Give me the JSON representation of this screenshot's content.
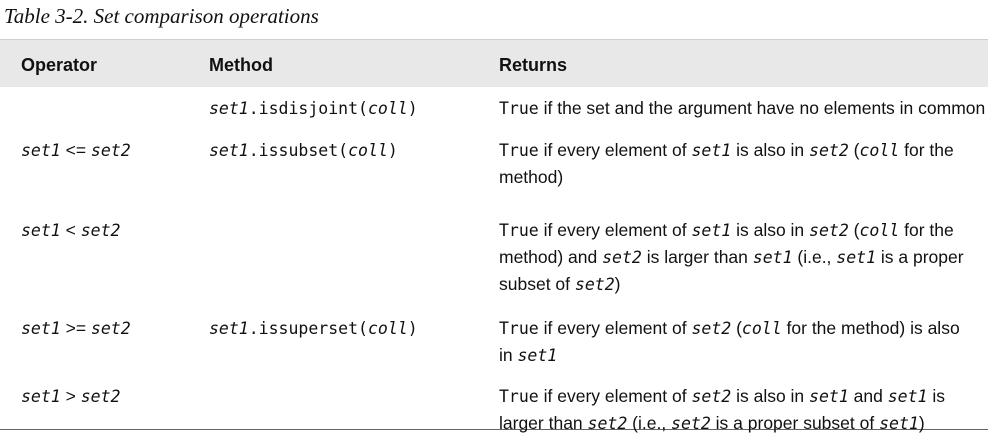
{
  "caption": "Table 3-2. Set comparison operations",
  "headers": [
    "Operator",
    "Method",
    "Returns"
  ],
  "rows": [
    {
      "operator": "",
      "method_obj": "set1",
      "method_name": ".isdisjoint(",
      "method_arg": "coll",
      "method_close": ")",
      "returns": [
        {
          "t": "True",
          "s": "mono"
        },
        {
          "t": " if the set and the argument have no elements in common",
          "s": "plain"
        }
      ]
    },
    {
      "op_left": "set1",
      "op_sym": " <= ",
      "op_right": "set2",
      "method_obj": "set1",
      "method_name": ".issubset(",
      "method_arg": "coll",
      "method_close": ")",
      "returns_line1": [
        {
          "t": "True",
          "s": "mono"
        },
        {
          "t": " if every element of ",
          "s": "plain"
        },
        {
          "t": "set1",
          "s": "monoit"
        },
        {
          "t": " is also in ",
          "s": "plain"
        },
        {
          "t": "set2",
          "s": "monoit"
        },
        {
          "t": " (",
          "s": "plain"
        },
        {
          "t": "coll",
          "s": "monoit"
        },
        {
          "t": " for the",
          "s": "plain"
        }
      ],
      "returns_line2": [
        {
          "t": "method)",
          "s": "plain"
        }
      ]
    },
    {
      "op_left": "set1",
      "op_sym": " < ",
      "op_right": "set2",
      "returns_line1": [
        {
          "t": "True",
          "s": "mono"
        },
        {
          "t": " if every element of ",
          "s": "plain"
        },
        {
          "t": "set1",
          "s": "monoit"
        },
        {
          "t": " is also in ",
          "s": "plain"
        },
        {
          "t": "set2",
          "s": "monoit"
        },
        {
          "t": " (",
          "s": "plain"
        },
        {
          "t": "coll",
          "s": "monoit"
        },
        {
          "t": " for the",
          "s": "plain"
        }
      ],
      "returns_line2": [
        {
          "t": "method) and ",
          "s": "plain"
        },
        {
          "t": "set2",
          "s": "monoit"
        },
        {
          "t": " is larger than ",
          "s": "plain"
        },
        {
          "t": "set1",
          "s": "monoit"
        },
        {
          "t": " (i.e., ",
          "s": "plain"
        },
        {
          "t": "set1",
          "s": "monoit"
        },
        {
          "t": " is a proper",
          "s": "plain"
        }
      ],
      "returns_line3": [
        {
          "t": "subset of ",
          "s": "plain"
        },
        {
          "t": "set2",
          "s": "monoit"
        },
        {
          "t": ")",
          "s": "plain"
        }
      ]
    },
    {
      "op_left": "set1",
      "op_sym": " >= ",
      "op_right": "set2",
      "method_obj": "set1",
      "method_name": ".issuperset(",
      "method_arg": "coll",
      "method_close": ")",
      "returns_line1": [
        {
          "t": "True",
          "s": "mono"
        },
        {
          "t": " if every element of ",
          "s": "plain"
        },
        {
          "t": "set2",
          "s": "monoit"
        },
        {
          "t": " (",
          "s": "plain"
        },
        {
          "t": "coll",
          "s": "monoit"
        },
        {
          "t": " for the method) is also",
          "s": "plain"
        }
      ],
      "returns_line2": [
        {
          "t": "in ",
          "s": "plain"
        },
        {
          "t": "set1",
          "s": "monoit"
        }
      ]
    },
    {
      "op_left": "set1",
      "op_sym": " > ",
      "op_right": "set2",
      "returns_line1": [
        {
          "t": "True",
          "s": "mono"
        },
        {
          "t": " if every element of ",
          "s": "plain"
        },
        {
          "t": "set2",
          "s": "monoit"
        },
        {
          "t": " is also in ",
          "s": "plain"
        },
        {
          "t": "set1",
          "s": "monoit"
        },
        {
          "t": " and ",
          "s": "plain"
        },
        {
          "t": "set1",
          "s": "monoit"
        },
        {
          "t": " is",
          "s": "plain"
        }
      ],
      "returns_line2": [
        {
          "t": "larger than ",
          "s": "plain"
        },
        {
          "t": "set2",
          "s": "monoit"
        },
        {
          "t": " (i.e., ",
          "s": "plain"
        },
        {
          "t": "set2",
          "s": "monoit"
        },
        {
          "t": " is a proper subset of ",
          "s": "plain"
        },
        {
          "t": "set1",
          "s": "monoit"
        },
        {
          "t": ")",
          "s": "plain"
        }
      ]
    }
  ]
}
